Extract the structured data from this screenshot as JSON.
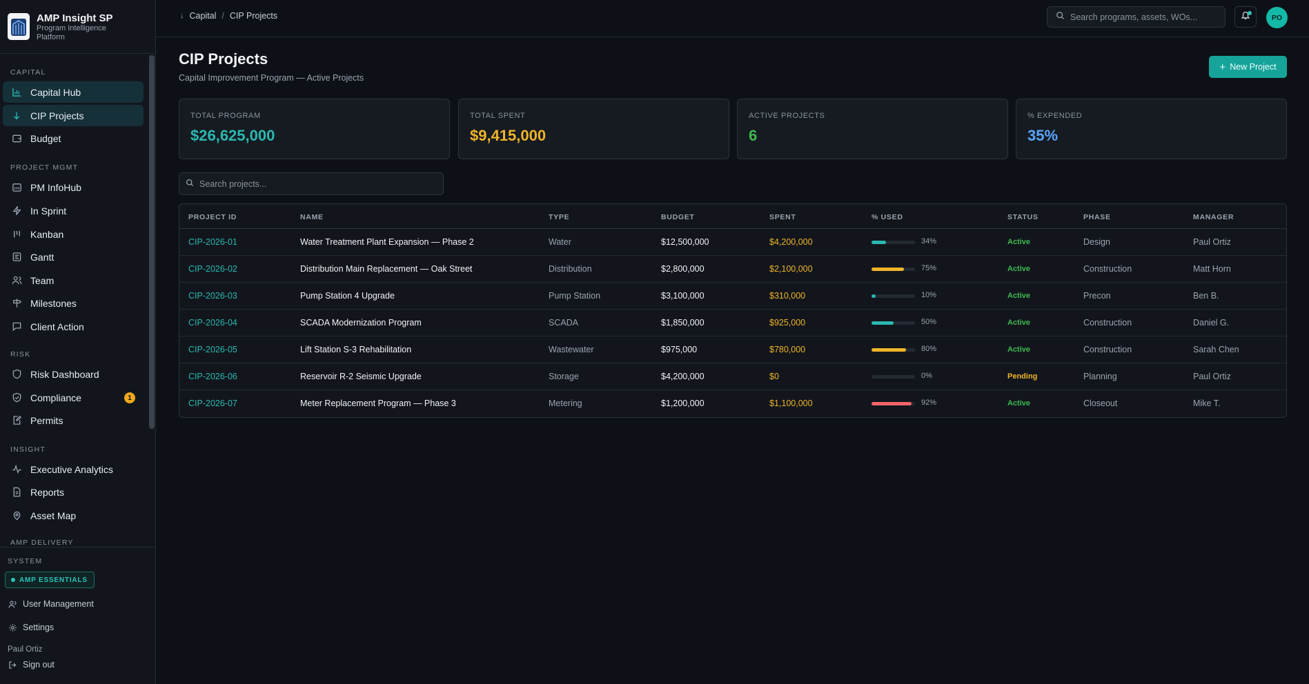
{
  "brand": {
    "title": "AMP Insight SP",
    "subtitle": "Program Intelligence Platform",
    "logo_icon": "building-logo-icon"
  },
  "sidebar": {
    "sections": [
      {
        "label": "CAPITAL",
        "items": [
          {
            "label": "Capital Hub",
            "icon": "bar-chart-icon",
            "active": true
          },
          {
            "label": "CIP Projects",
            "icon": "arrow-down-icon",
            "active": true
          },
          {
            "label": "Budget",
            "icon": "wallet-icon"
          }
        ]
      },
      {
        "label": "PROJECT MGMT",
        "items": [
          {
            "label": "PM InfoHub",
            "icon": "calendar-grid-icon"
          },
          {
            "label": "In Sprint",
            "icon": "lightning-icon"
          },
          {
            "label": "Kanban",
            "icon": "kanban-icon"
          },
          {
            "label": "Gantt",
            "icon": "gantt-icon"
          },
          {
            "label": "Team",
            "icon": "users-icon"
          },
          {
            "label": "Milestones",
            "icon": "signpost-icon"
          },
          {
            "label": "Client Action",
            "icon": "message-icon"
          }
        ]
      },
      {
        "label": "RISK",
        "items": [
          {
            "label": "Risk Dashboard",
            "icon": "shield-icon"
          },
          {
            "label": "Compliance",
            "icon": "shield-check-icon",
            "badge": "1"
          },
          {
            "label": "Permits",
            "icon": "edit-document-icon"
          }
        ]
      },
      {
        "label": "INSIGHT",
        "items": [
          {
            "label": "Executive Analytics",
            "icon": "activity-icon"
          },
          {
            "label": "Reports",
            "icon": "document-icon"
          },
          {
            "label": "Asset Map",
            "icon": "map-pin-icon"
          }
        ]
      },
      {
        "label": "AMP DELIVERY",
        "items": []
      }
    ],
    "system_label": "SYSTEM",
    "essentials_badge": "AMP ESSENTIALS",
    "user_management": "User Management",
    "settings": "Settings",
    "user_name": "Paul Ortiz",
    "sign_out": "Sign out"
  },
  "topbar": {
    "breadcrumb": [
      "Capital",
      "CIP Projects"
    ],
    "search_placeholder": "Search programs, assets, WOs...",
    "avatar_initials": "PO"
  },
  "page": {
    "title": "CIP Projects",
    "subtitle": "Capital Improvement Program — Active Projects",
    "new_button": "New Project"
  },
  "kpis": [
    {
      "label": "TOTAL PROGRAM",
      "value": "$26,625,000",
      "color": "#2bb8b0"
    },
    {
      "label": "TOTAL SPENT",
      "value": "$9,415,000",
      "color": "#f0b429"
    },
    {
      "label": "ACTIVE PROJECTS",
      "value": "6",
      "color": "#3fb950"
    },
    {
      "label": "% EXPENDED",
      "value": "35%",
      "color": "#58a6ff"
    }
  ],
  "table": {
    "search_placeholder": "Search projects...",
    "columns": [
      "PROJECT ID",
      "NAME",
      "TYPE",
      "BUDGET",
      "SPENT",
      "% USED",
      "STATUS",
      "PHASE",
      "MANAGER"
    ],
    "rows": [
      {
        "id": "CIP-2026-01",
        "name": "Water Treatment Plant Expansion — Phase 2",
        "type": "Water",
        "budget": "$12,500,000",
        "spent": "$4,200,000",
        "pct": 34,
        "pct_label": "34%",
        "status": "Active",
        "phase": "Design",
        "manager": "Paul Ortiz",
        "bar_color": "#2bb8b0"
      },
      {
        "id": "CIP-2026-02",
        "name": "Distribution Main Replacement — Oak Street",
        "type": "Distribution",
        "budget": "$2,800,000",
        "spent": "$2,100,000",
        "pct": 75,
        "pct_label": "75%",
        "status": "Active",
        "phase": "Construction",
        "manager": "Matt Horn",
        "bar_color": "#f0b429"
      },
      {
        "id": "CIP-2026-03",
        "name": "Pump Station 4 Upgrade",
        "type": "Pump Station",
        "budget": "$3,100,000",
        "spent": "$310,000",
        "pct": 10,
        "pct_label": "10%",
        "status": "Active",
        "phase": "Precon",
        "manager": "Ben B.",
        "bar_color": "#2bb8b0"
      },
      {
        "id": "CIP-2026-04",
        "name": "SCADA Modernization Program",
        "type": "SCADA",
        "budget": "$1,850,000",
        "spent": "$925,000",
        "pct": 50,
        "pct_label": "50%",
        "status": "Active",
        "phase": "Construction",
        "manager": "Daniel G.",
        "bar_color": "#2bb8b0"
      },
      {
        "id": "CIP-2026-05",
        "name": "Lift Station S-3 Rehabilitation",
        "type": "Wastewater",
        "budget": "$975,000",
        "spent": "$780,000",
        "pct": 80,
        "pct_label": "80%",
        "status": "Active",
        "phase": "Construction",
        "manager": "Sarah Chen",
        "bar_color": "#f0b429"
      },
      {
        "id": "CIP-2026-06",
        "name": "Reservoir R-2 Seismic Upgrade",
        "type": "Storage",
        "budget": "$4,200,000",
        "spent": "$0",
        "pct": 0,
        "pct_label": "0%",
        "status": "Pending",
        "phase": "Planning",
        "manager": "Paul Ortiz",
        "bar_color": "#2bb8b0"
      },
      {
        "id": "CIP-2026-07",
        "name": "Meter Replacement Program — Phase 3",
        "type": "Metering",
        "budget": "$1,200,000",
        "spent": "$1,100,000",
        "pct": 92,
        "pct_label": "92%",
        "status": "Active",
        "phase": "Closeout",
        "manager": "Mike T.",
        "bar_color": "#f2656b"
      }
    ],
    "status_colors": {
      "Active": "#3fb950",
      "Pending": "#f0b429"
    }
  }
}
